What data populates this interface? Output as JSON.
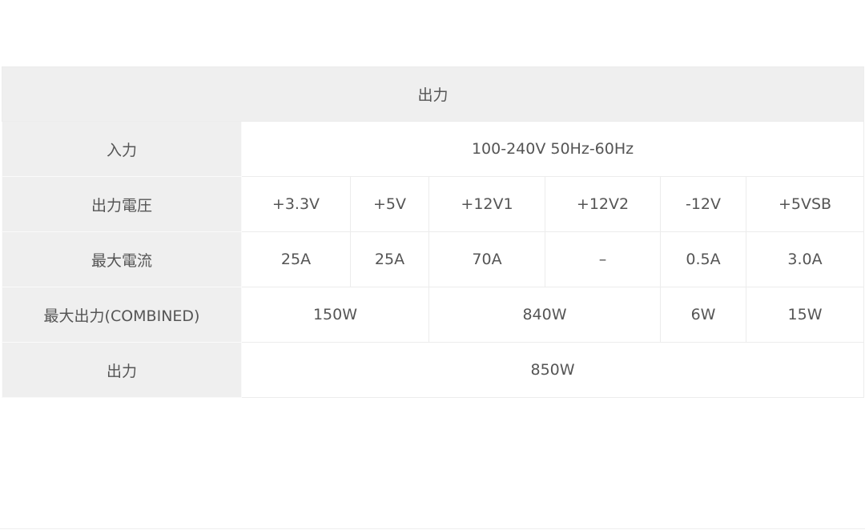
{
  "table": {
    "title": "出力",
    "rows": {
      "input": {
        "label": "入力",
        "value": "100-240V 50Hz-60Hz"
      },
      "voltage": {
        "label": "出力電圧",
        "values": [
          "+3.3V",
          "+5V",
          "+12V1",
          "+12V2",
          "-12V",
          "+5VSB"
        ]
      },
      "current": {
        "label": "最大電流",
        "values": [
          "25A",
          "25A",
          "70A",
          "–",
          "0.5A",
          "3.0A"
        ]
      },
      "combined": {
        "label": "最大出力(COMBINED)",
        "values": [
          "150W",
          "840W",
          "6W",
          "15W"
        ]
      },
      "output": {
        "label": "出力",
        "value": "850W"
      }
    }
  }
}
